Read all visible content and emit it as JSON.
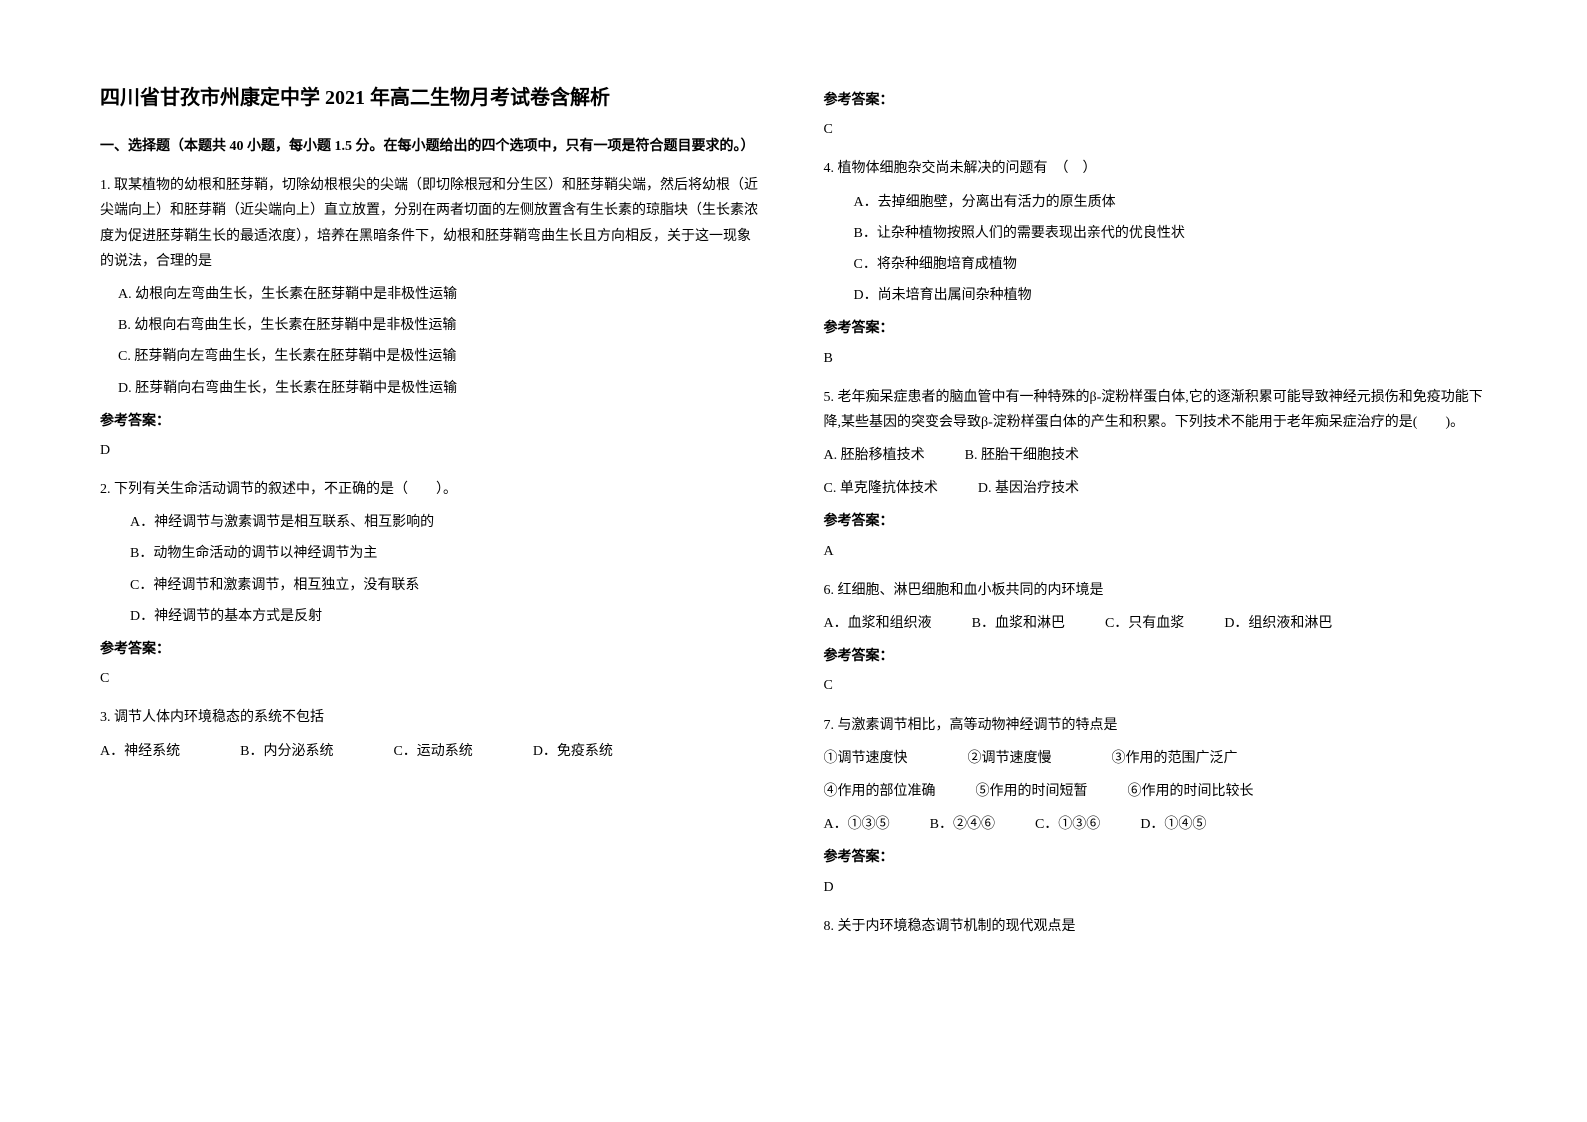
{
  "title": "四川省甘孜市州康定中学 2021 年高二生物月考试卷含解析",
  "section1_header": "一、选择题（本题共 40 小题，每小题 1.5 分。在每小题给出的四个选项中，只有一项是符合题目要求的。）",
  "q1": {
    "text": "1. 取某植物的幼根和胚芽鞘，切除幼根根尖的尖端（即切除根冠和分生区）和胚芽鞘尖端，然后将幼根（近尖端向上）和胚芽鞘（近尖端向上）直立放置，分别在两者切面的左侧放置含有生长素的琼脂块（生长素浓度为促进胚芽鞘生长的最适浓度），培养在黑暗条件下，幼根和胚芽鞘弯曲生长且方向相反，关于这一现象的说法，合理的是",
    "optA": "A. 幼根向左弯曲生长，生长素在胚芽鞘中是非极性运输",
    "optB": "B. 幼根向右弯曲生长，生长素在胚芽鞘中是非极性运输",
    "optC": "C. 胚芽鞘向左弯曲生长，生长素在胚芽鞘中是极性运输",
    "optD": "D. 胚芽鞘向右弯曲生长，生长素在胚芽鞘中是极性运输",
    "answer": "D"
  },
  "q2": {
    "text": "2. 下列有关生命活动调节的叙述中，不正确的是（　　）。",
    "optA": "A．神经调节与激素调节是相互联系、相互影响的",
    "optB": "B．动物生命活动的调节以神经调节为主",
    "optC": "C．神经调节和激素调节，相互独立，没有联系",
    "optD": "D．神经调节的基本方式是反射",
    "answer": "C"
  },
  "q3": {
    "text": "3. 调节人体内环境稳态的系统不包括",
    "optA": "A．神经系统",
    "optB": "B．内分泌系统",
    "optC": "C．运动系统",
    "optD": "D．免疫系统",
    "answer": "C"
  },
  "q4": {
    "text": "4. 植物体细胞杂交尚未解决的问题有　（　）",
    "optA": "A．去掉细胞壁，分离出有活力的原生质体",
    "optB": "B．让杂种植物按照人们的需要表现出亲代的优良性状",
    "optC": "C．将杂种细胞培育成植物",
    "optD": "D．尚未培育出属间杂种植物",
    "answer": "B"
  },
  "q5": {
    "text": "5. 老年痴呆症患者的脑血管中有一种特殊的β-淀粉样蛋白体,它的逐渐积累可能导致神经元损伤和免疫功能下降,某些基因的突变会导致β-淀粉样蛋白体的产生和积累。下列技术不能用于老年痴呆症治疗的是(　　)。",
    "optA": "A. 胚胎移植技术",
    "optB": "B. 胚胎干细胞技术",
    "optC": "C. 单克隆抗体技术",
    "optD": "D. 基因治疗技术",
    "answer": "A"
  },
  "q6": {
    "text": "6. 红细胞、淋巴细胞和血小板共同的内环境是",
    "optA": "A．血浆和组织液",
    "optB": "B．血浆和淋巴",
    "optC": "C．只有血浆",
    "optD": "D．组织液和淋巴",
    "answer": "C"
  },
  "q7": {
    "text": "7. 与激素调节相比，高等动物神经调节的特点是",
    "line1a": "①调节速度快",
    "line1b": "②调节速度慢",
    "line1c": "③作用的范围广泛广",
    "line2a": "④作用的部位准确",
    "line2b": "⑤作用的时间短暂",
    "line2c": "⑥作用的时间比较长",
    "optA": "A．①③⑤",
    "optB": "B．②④⑥",
    "optC": "C．①③⑥",
    "optD": "D．①④⑤",
    "answer": "D"
  },
  "q8": {
    "text": "8. 关于内环境稳态调节机制的现代观点是"
  },
  "answer_label": "参考答案："
}
